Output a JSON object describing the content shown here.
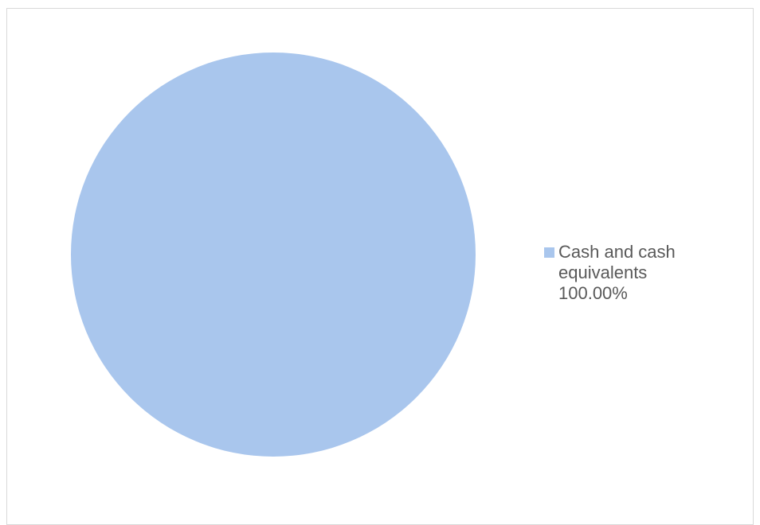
{
  "chart_data": {
    "type": "pie",
    "title": "",
    "slices": [
      {
        "label": "Cash and cash equivalents",
        "value": 100.0,
        "value_label": "100.00%",
        "color": "#a9c6ed"
      }
    ],
    "legend": {
      "placement": "right",
      "label_lines": [
        "Cash and cash",
        "equivalents",
        "100.00%"
      ]
    }
  }
}
